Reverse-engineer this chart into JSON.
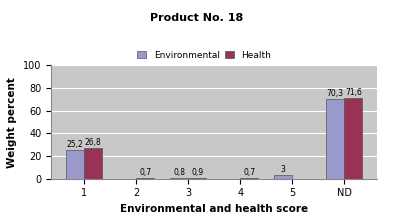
{
  "title": "Product No. 18",
  "xlabel": "Environmental and health score",
  "ylabel": "Weight percent",
  "categories": [
    "1",
    "2",
    "3",
    "4",
    "5",
    "ND"
  ],
  "environmental": [
    25.2,
    0.0,
    0.8,
    0.0,
    3.0,
    70.3
  ],
  "health": [
    26.8,
    0.7,
    0.9,
    0.7,
    0.0,
    71.6
  ],
  "env_labels": [
    "25,2",
    "",
    "0,8",
    "",
    "3",
    "70,3"
  ],
  "health_labels": [
    "26,8",
    "0,7",
    "0,9",
    "0,7",
    "",
    "71,6"
  ],
  "env_color": "#9999cc",
  "health_color": "#993355",
  "ylim": [
    0,
    100
  ],
  "yticks": [
    0,
    20,
    40,
    60,
    80,
    100
  ],
  "bar_width": 0.35,
  "legend_labels": [
    "Environmental",
    "Health"
  ],
  "plot_bg_color": "#c8c8c8",
  "fig_bg_color": "#ffffff"
}
